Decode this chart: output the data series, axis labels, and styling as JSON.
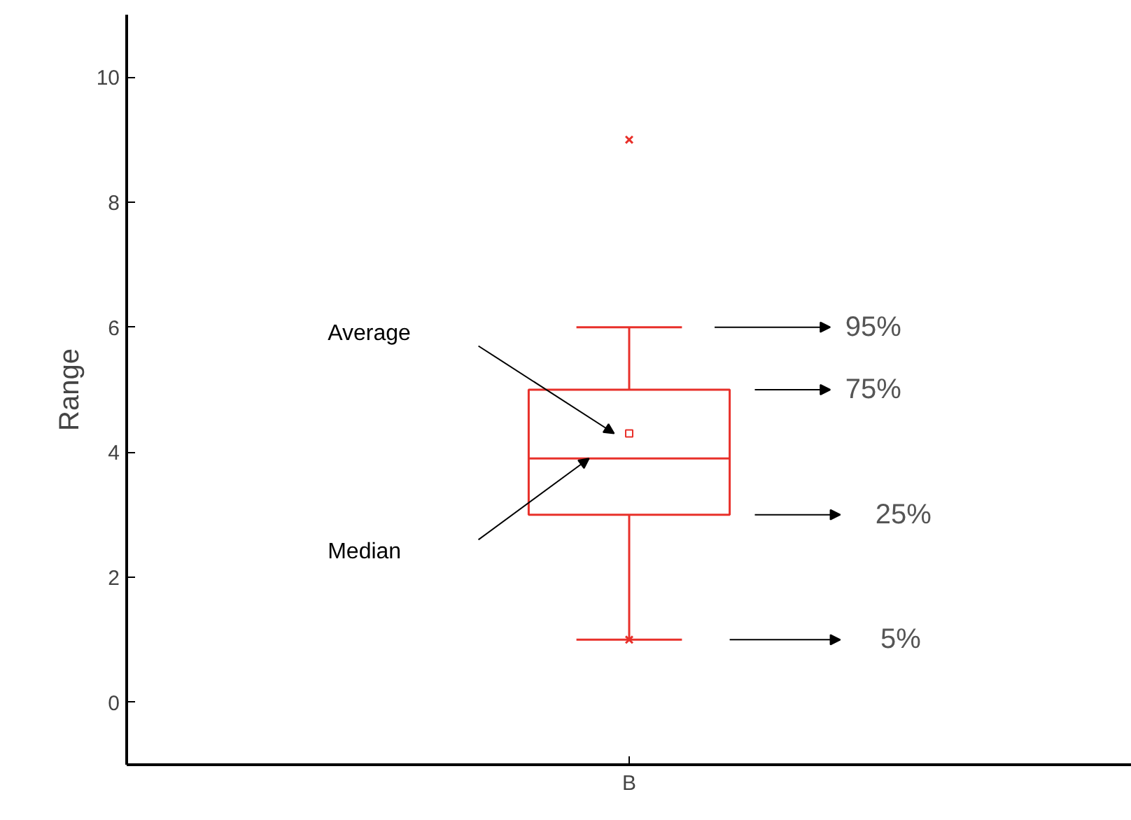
{
  "chart_data": {
    "type": "box",
    "ylabel": "Range",
    "categories": [
      "B"
    ],
    "ylim": [
      -1,
      11
    ],
    "yticks": [
      0,
      2,
      4,
      6,
      8,
      10
    ],
    "grid": false,
    "series": [
      {
        "color": "#e8302a",
        "boxes": [
          {
            "low": 1,
            "q1": 3,
            "median": 3.9,
            "q3": 5,
            "high": 6,
            "mean": 4.3,
            "outliers": [
              1,
              9
            ]
          }
        ]
      }
    ],
    "annotations": [
      "Average",
      "Median",
      "95%",
      "75%",
      "25%",
      "5%"
    ]
  }
}
